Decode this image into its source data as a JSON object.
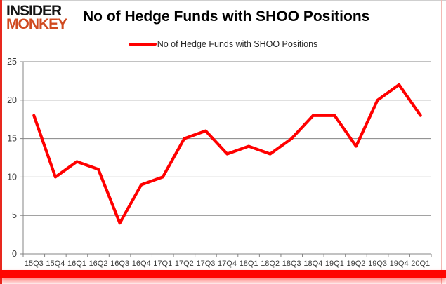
{
  "header": {
    "logo_line1": "INSIDER",
    "logo_line2": "MONKEY",
    "title": "No of Hedge Funds with SHOO Positions"
  },
  "legend": {
    "label": "No of Hedge Funds with SHOO Positions"
  },
  "chart_data": {
    "type": "line",
    "title": "No of Hedge Funds with SHOO Positions",
    "categories": [
      "15Q3",
      "15Q4",
      "16Q1",
      "16Q2",
      "16Q3",
      "16Q4",
      "17Q1",
      "17Q2",
      "17Q3",
      "17Q4",
      "18Q1",
      "18Q2",
      "18Q3",
      "18Q4",
      "19Q1",
      "19Q2",
      "19Q3",
      "19Q4",
      "20Q1"
    ],
    "series": [
      {
        "name": "No of Hedge Funds with SHOO Positions",
        "values": [
          18,
          10,
          12,
          11,
          4,
          9,
          10,
          15,
          16,
          13,
          14,
          13,
          15,
          18,
          18,
          14,
          20,
          22,
          18
        ]
      }
    ],
    "xlabel": "",
    "ylabel": "",
    "ylim": [
      0,
      25
    ],
    "yticks": [
      0,
      5,
      10,
      15,
      20,
      25
    ],
    "grid": true,
    "legend_position": "top-center"
  },
  "colors": {
    "series_line": "#ff0000",
    "gridline": "#848484",
    "axis": "#848484",
    "tick_label": "#3a3a3a",
    "title_text": "#000000",
    "logo_black": "#151515",
    "logo_red": "#d04a20",
    "frame_accent": "#e8281e",
    "bottom_bar": "#ff0500"
  }
}
